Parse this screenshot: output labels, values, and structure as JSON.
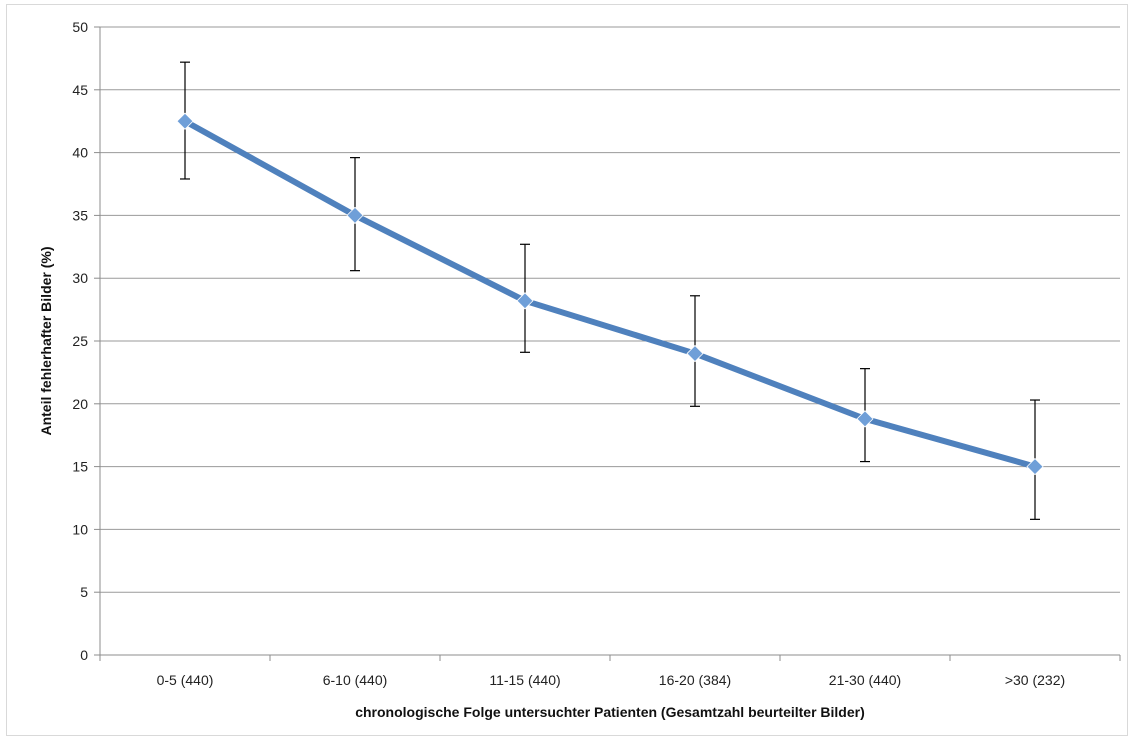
{
  "chart_data": {
    "type": "line",
    "title": "",
    "xlabel": "chronologische  Folge untersuchter Patienten (Gesamtzahl  beurteilter Bilder)",
    "ylabel": "Anteil fehlerhafter Bilder (%)",
    "ylim": [
      0,
      50
    ],
    "yticks": [
      "0",
      "5",
      "10",
      "15",
      "20",
      "25",
      "30",
      "35",
      "40",
      "45",
      "50"
    ],
    "categories": [
      "0-5 (440)",
      "6-10 (440)",
      "11-15 (440)",
      "16-20 (384)",
      "21-30 (440)",
      ">30 (232)"
    ],
    "series": [
      {
        "values": [
          42.5,
          35.0,
          28.2,
          24.0,
          18.8,
          15.0
        ],
        "error_low": [
          37.9,
          30.6,
          24.1,
          19.8,
          15.4,
          10.8
        ],
        "error_high": [
          47.2,
          39.6,
          32.7,
          28.6,
          22.8,
          20.3
        ],
        "color": "#4f81bd",
        "marker": "diamond"
      }
    ],
    "grid": true,
    "legend": "none"
  }
}
